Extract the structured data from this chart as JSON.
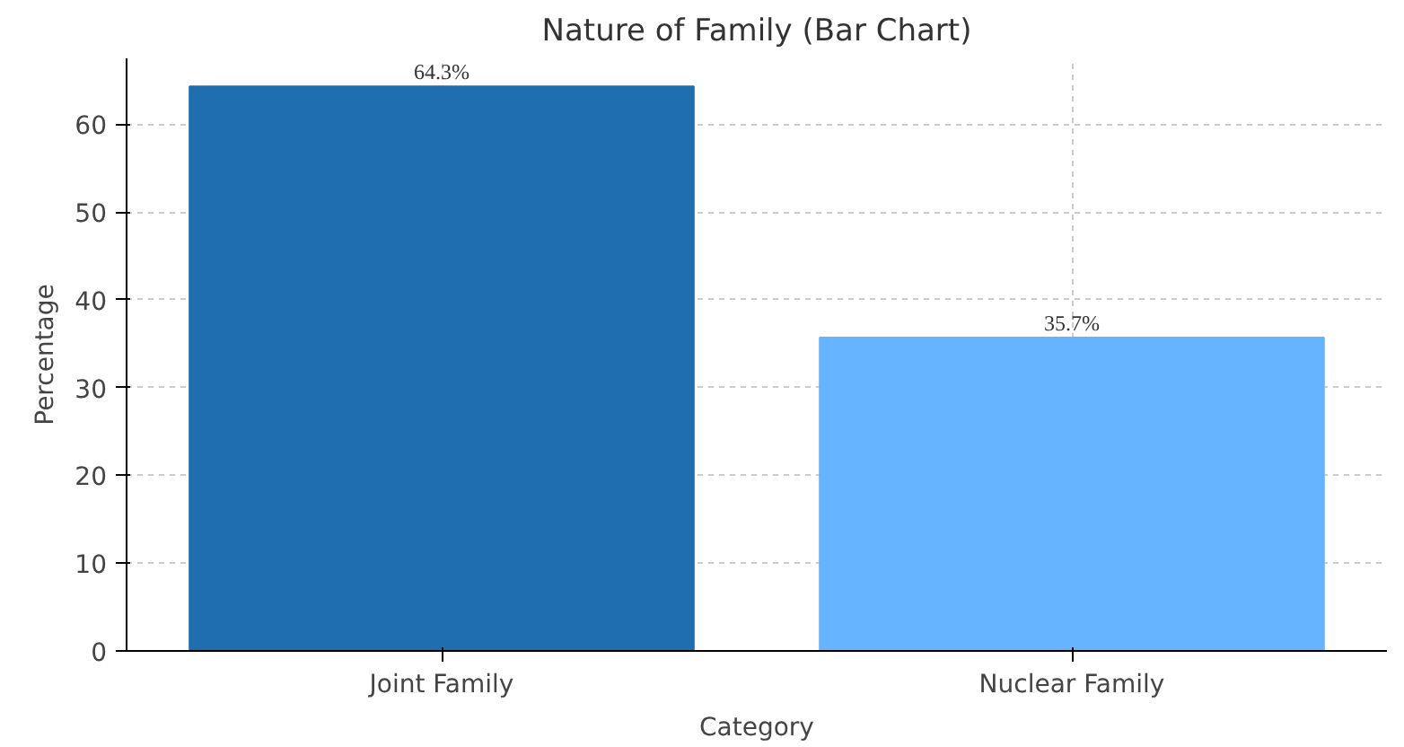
{
  "chart_data": {
    "type": "bar",
    "title": "Nature of Family (Bar Chart)",
    "xlabel": "Category",
    "ylabel": "Percentage",
    "categories": [
      "Joint Family",
      "Nuclear Family"
    ],
    "values": [
      64.3,
      35.7
    ],
    "colors": [
      "#1f6fb0",
      "#66b3ff"
    ],
    "value_labels": [
      "64.3%",
      "35.7%"
    ],
    "ylim": [
      0,
      67.5
    ],
    "yticks": [
      0,
      10,
      20,
      30,
      40,
      50,
      60
    ],
    "grid": true
  }
}
